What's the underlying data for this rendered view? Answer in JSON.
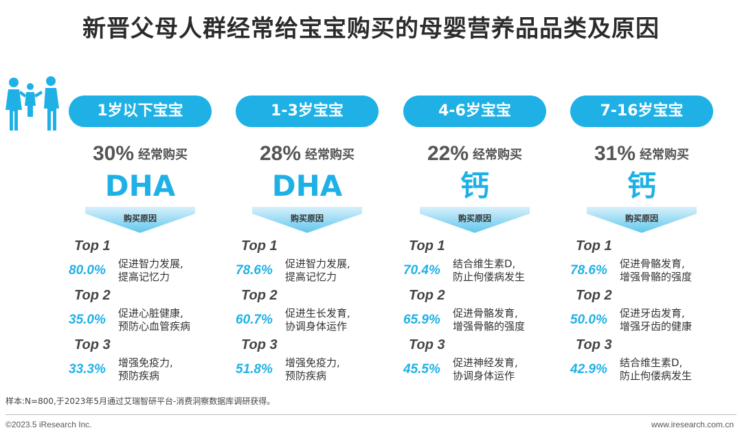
{
  "title": "新晋父母人群经常给宝宝购买的母婴营养品品类及原因",
  "icon": "family-icon",
  "accent_color": "#1fb1e6",
  "columns": [
    {
      "age": "1岁以下宝宝",
      "pct": "30%",
      "freq_label": "经常购买",
      "product": "DHA",
      "reason_label": "购买原因",
      "reasons": [
        {
          "rank": "Top 1",
          "pct": "80.0%",
          "line1": "促进智力发展,",
          "line2": "提高记忆力"
        },
        {
          "rank": "Top 2",
          "pct": "35.0%",
          "line1": "促进心脏健康,",
          "line2": "预防心血管疾病"
        },
        {
          "rank": "Top 3",
          "pct": "33.3%",
          "line1": "增强免疫力,",
          "line2": "预防疾病"
        }
      ]
    },
    {
      "age": "1-3岁宝宝",
      "pct": "28%",
      "freq_label": "经常购买",
      "product": "DHA",
      "reason_label": "购买原因",
      "reasons": [
        {
          "rank": "Top 1",
          "pct": "78.6%",
          "line1": "促进智力发展,",
          "line2": "提高记忆力"
        },
        {
          "rank": "Top 2",
          "pct": "60.7%",
          "line1": "促进生长发育,",
          "line2": "协调身体运作"
        },
        {
          "rank": "Top 3",
          "pct": "51.8%",
          "line1": "增强免疫力,",
          "line2": "预防疾病"
        }
      ]
    },
    {
      "age": "4-6岁宝宝",
      "pct": "22%",
      "freq_label": "经常购买",
      "product": "钙",
      "reason_label": "购买原因",
      "reasons": [
        {
          "rank": "Top 1",
          "pct": "70.4%",
          "line1": "结合维生素D,",
          "line2": "防止佝偻病发生"
        },
        {
          "rank": "Top 2",
          "pct": "65.9%",
          "line1": "促进骨骼发育,",
          "line2": "增强骨骼的强度"
        },
        {
          "rank": "Top 3",
          "pct": "45.5%",
          "line1": "促进神经发育,",
          "line2": "协调身体运作"
        }
      ]
    },
    {
      "age": "7-16岁宝宝",
      "pct": "31%",
      "freq_label": "经常购买",
      "product": "钙",
      "reason_label": "购买原因",
      "reasons": [
        {
          "rank": "Top 1",
          "pct": "78.6%",
          "line1": "促进骨骼发育,",
          "line2": "增强骨骼的强度"
        },
        {
          "rank": "Top 2",
          "pct": "50.0%",
          "line1": "促进牙齿发育,",
          "line2": "增强牙齿的健康"
        },
        {
          "rank": "Top 3",
          "pct": "42.9%",
          "line1": "结合维生素D,",
          "line2": "防止佝偻病发生"
        }
      ]
    }
  ],
  "footnote": "样本:N=800,于2023年5月通过艾瑞智研平台-消费洞察数据库调研获得。",
  "copyright": "©2023.5 iResearch Inc.",
  "website": "www.iresearch.com.cn"
}
